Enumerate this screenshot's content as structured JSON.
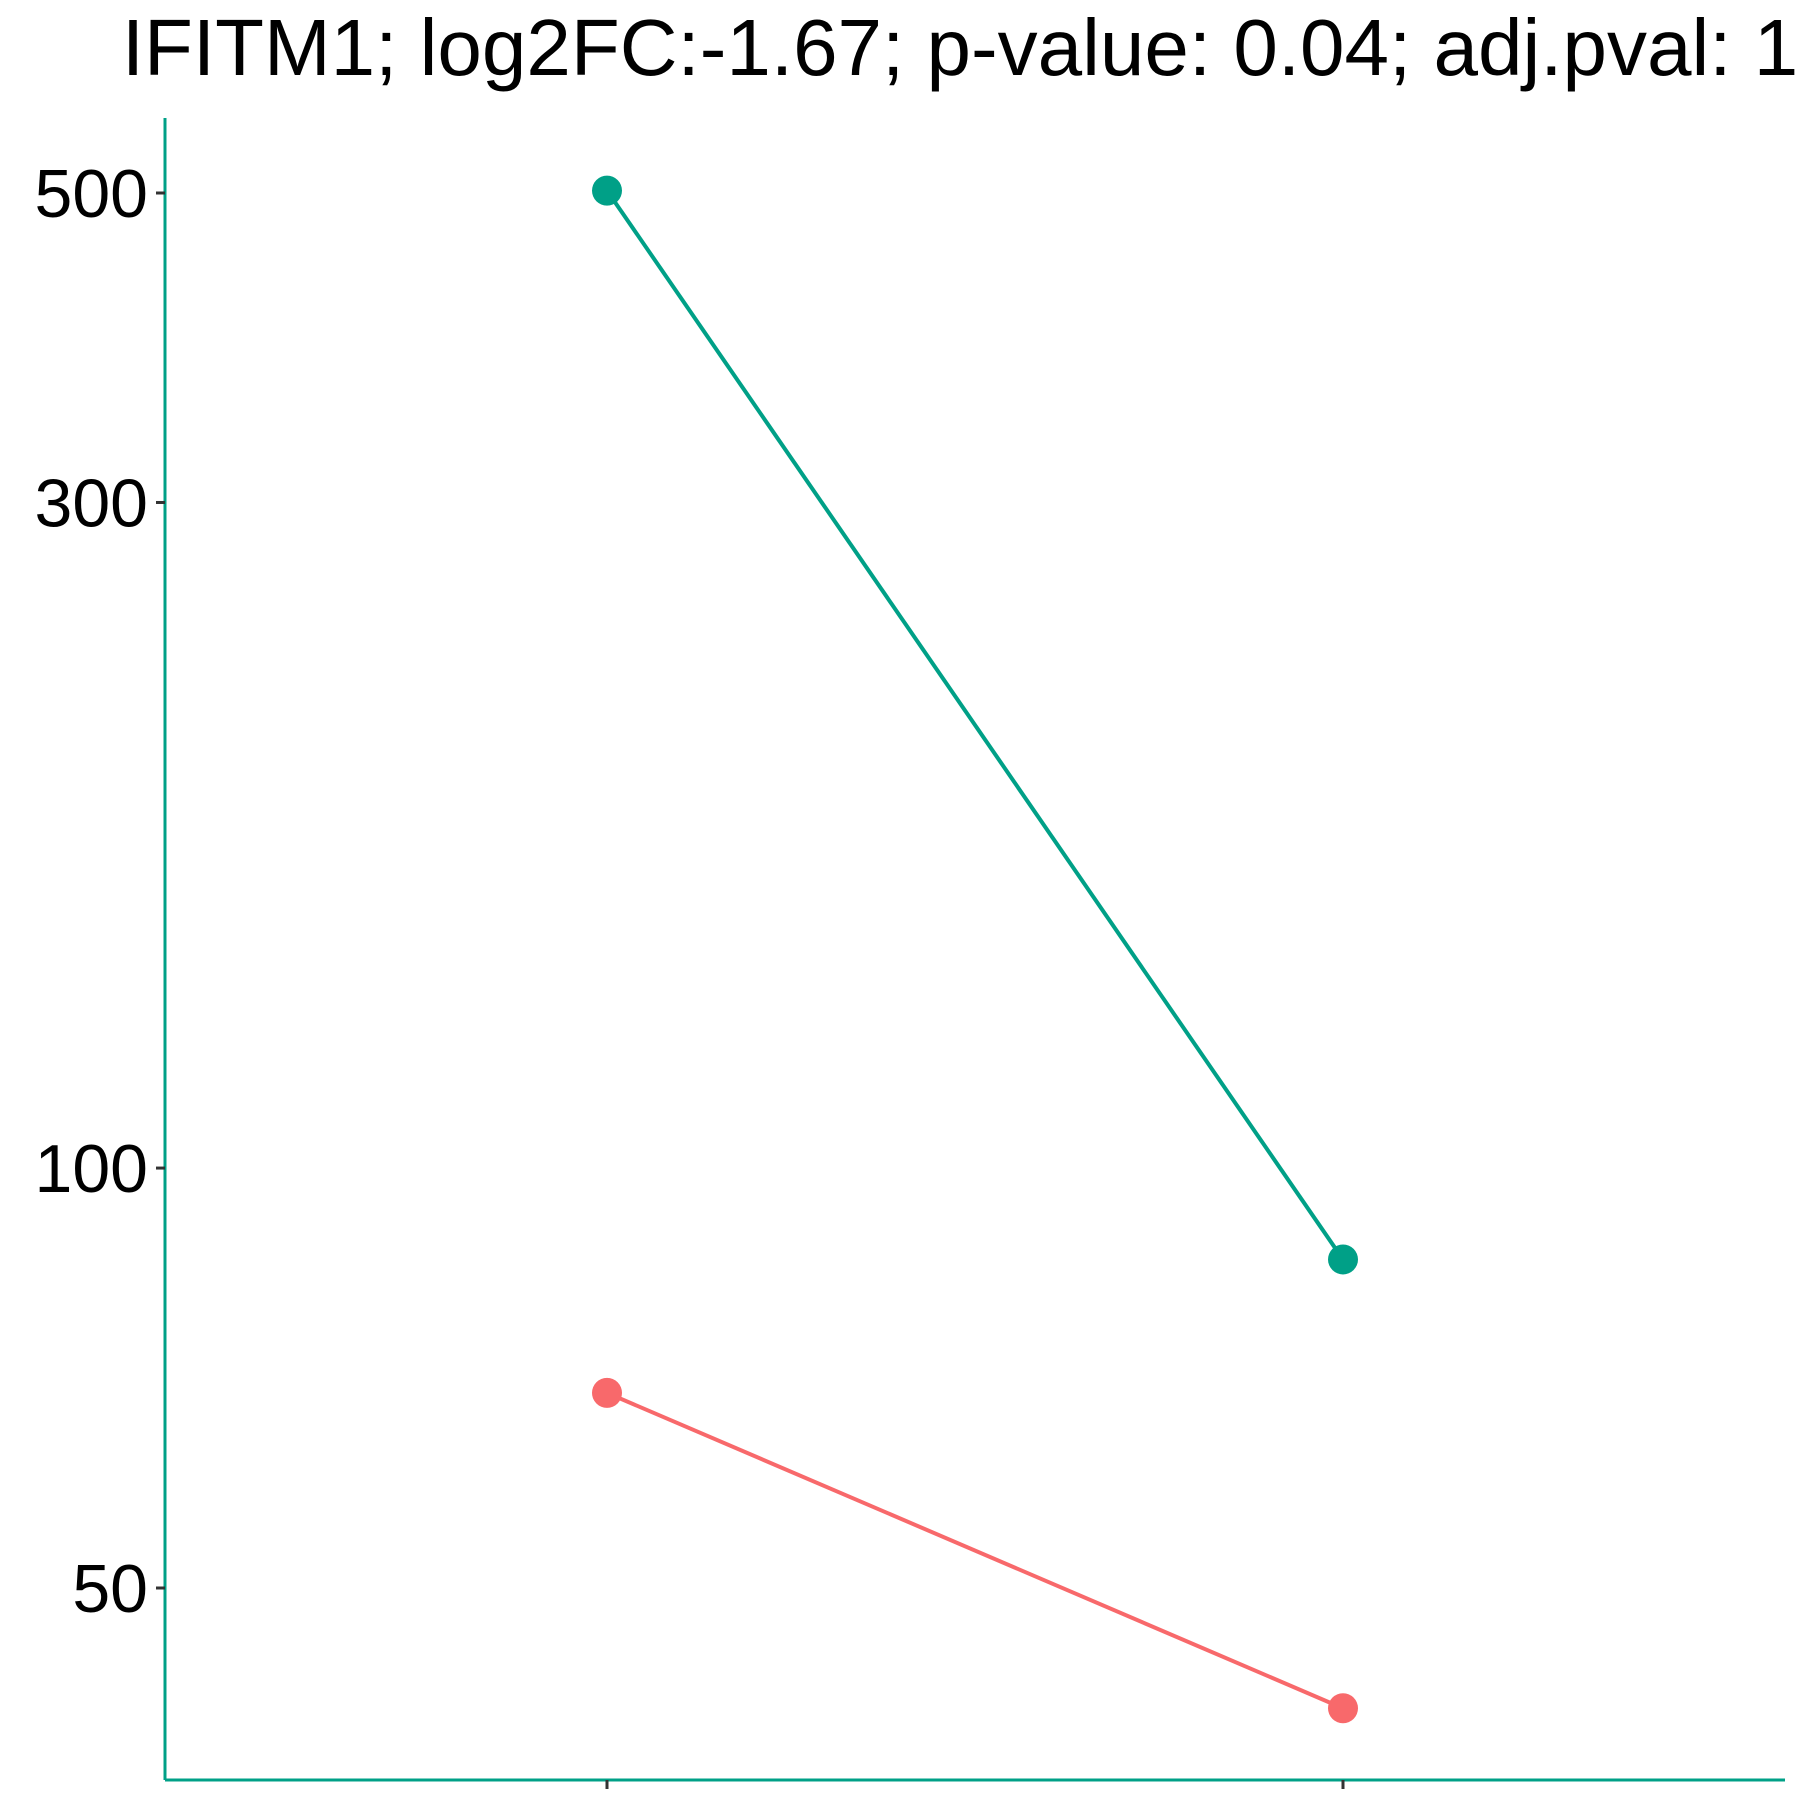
{
  "chart_data": {
    "type": "line",
    "title": "IFITM1; log2FC:-1.67; p-value: 0.04; adj.pval: 1",
    "x": [
      "",
      ""
    ],
    "y_scale": "log10",
    "ylim": [
      37,
      600
    ],
    "y_ticks": [
      50,
      100,
      300,
      500
    ],
    "y_tick_labels": [
      "50",
      "100",
      "300",
      "500"
    ],
    "grid": false,
    "legend": "none",
    "series": [
      {
        "values": [
          502,
          86
        ],
        "color": "#00A087"
      },
      {
        "values": [
          69,
          41
        ],
        "color": "#F8696B"
      }
    ],
    "axis_color": "#00A087",
    "tick_color": "#333333"
  }
}
